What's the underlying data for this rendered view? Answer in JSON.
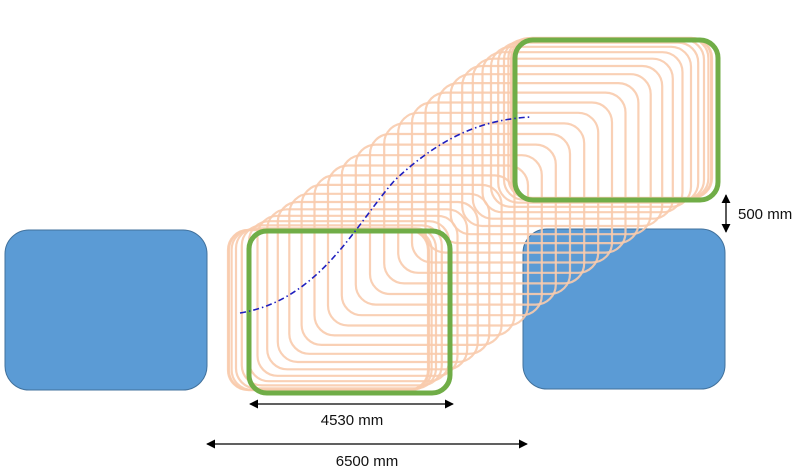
{
  "diagram": {
    "dimensions": {
      "start_width_label": "4530 mm",
      "total_width_label": "6500 mm",
      "vertical_offset_label": "500 mm"
    },
    "colors": {
      "obstacle_fill": "#5b9bd5",
      "obstacle_stroke": "#41719c",
      "sweep_stroke": "#f8cbad",
      "endpoint_stroke": "#70ad47",
      "path_stroke": "#1f1fbf",
      "arrow_stroke": "#000000"
    },
    "sweep_frame_count": 30
  }
}
